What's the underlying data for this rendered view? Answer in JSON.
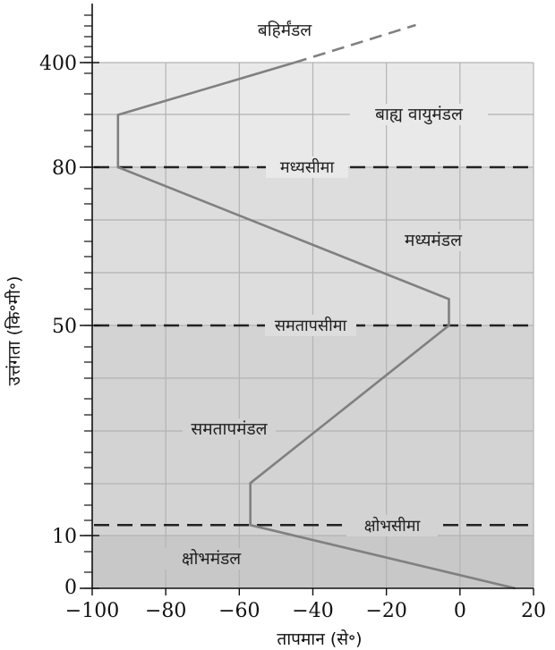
{
  "chart_data": {
    "type": "line",
    "xlabel": "तापमान (से॰)",
    "ylabel": "उत्तंगता (कि॰मी॰)",
    "x_ticks": [
      "−100",
      "−80",
      "−60",
      "−40",
      "−20",
      "0",
      "20"
    ],
    "xlim": [
      -100,
      20
    ],
    "y_ticks": [
      "0",
      "10",
      "50",
      "80",
      "400"
    ],
    "grid": true,
    "series": [
      {
        "values_x": [
          15,
          -57,
          -57,
          -3,
          -3,
          -93,
          -93,
          -45
        ],
        "values_y": [
          0,
          12,
          20,
          50,
          55,
          80,
          90,
          100
        ],
        "style": "solid"
      },
      {
        "values_x": [
          -45,
          -12
        ],
        "values_y": [
          100,
          107
        ],
        "style": "dashed"
      }
    ],
    "layers": [
      {
        "name": "बहिर्मंडल",
        "shade": "#ffffff"
      },
      {
        "name": "बाह्य वायुमंडल",
        "shade": "#e9e9e9"
      },
      {
        "name": "मध्यमंडल",
        "shade": "#dddddd"
      },
      {
        "name": "समतापमंडल",
        "shade": "#d3d3d3"
      },
      {
        "name": "क्षोभमंडल",
        "shade": "#c8c8c8"
      }
    ],
    "boundaries": [
      {
        "name": "मध्यसीमा",
        "y": 80
      },
      {
        "name": "समतापसीमा",
        "y": 50
      },
      {
        "name": "क्षोभसीमा",
        "y": 12
      }
    ],
    "colors": {
      "curve": "#808080",
      "dashed_boundary": "#222222",
      "grid": "#b3b3b3"
    }
  }
}
